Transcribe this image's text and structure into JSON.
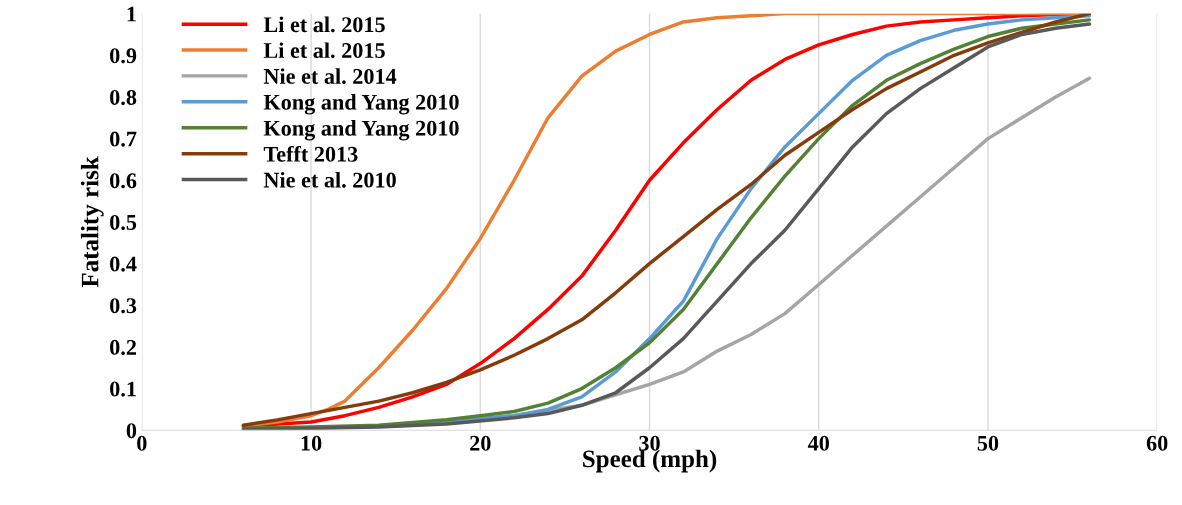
{
  "chart_data": {
    "type": "line",
    "xlabel": "Speed (mph)",
    "ylabel": "Fatality risk",
    "xlim": [
      0,
      60
    ],
    "xticks": [
      0,
      10,
      20,
      30,
      40,
      50,
      60
    ],
    "ylim": [
      0,
      1
    ],
    "yticks": [
      0,
      {
        "value": 0.1,
        "label": "0.1"
      },
      {
        "value": 0.2,
        "label": "0.2"
      },
      {
        "value": 0.3,
        "label": "0.3"
      },
      {
        "value": 0.4,
        "label": "0.4"
      },
      {
        "value": 0.5,
        "label": "0.5"
      },
      {
        "value": 0.6,
        "label": "0.6"
      },
      {
        "value": 0.7,
        "label": "0.7"
      },
      {
        "value": 0.8,
        "label": "0.8"
      },
      {
        "value": 0.9,
        "label": "0.9"
      },
      1
    ],
    "grid": "x",
    "legend": "top left",
    "marker": "none",
    "line_style": "solid",
    "series": [
      {
        "name": "Li et al. 2015",
        "color": "#ff0000",
        "x": [
          6,
          10,
          12,
          14,
          16,
          18,
          20,
          22,
          24,
          26,
          28,
          30,
          32,
          34,
          36,
          38,
          40,
          42,
          44,
          46,
          48,
          50,
          52,
          54,
          56
        ],
        "values": [
          0.01,
          0.02,
          0.035,
          0.055,
          0.08,
          0.11,
          0.16,
          0.22,
          0.29,
          0.37,
          0.48,
          0.6,
          0.69,
          0.77,
          0.84,
          0.89,
          0.925,
          0.95,
          0.97,
          0.98,
          0.985,
          0.99,
          0.995,
          0.998,
          1.0
        ]
      },
      {
        "name": "Li et al. 2015",
        "color": "#ed7d31",
        "x": [
          6,
          8,
          10,
          11,
          12,
          14,
          16,
          18,
          20,
          22,
          24,
          26,
          28,
          30,
          32,
          34,
          36,
          38,
          44,
          50,
          56
        ],
        "values": [
          0.01,
          0.02,
          0.035,
          0.05,
          0.07,
          0.15,
          0.24,
          0.34,
          0.46,
          0.6,
          0.75,
          0.85,
          0.91,
          0.95,
          0.98,
          0.99,
          0.995,
          1.0,
          1.0,
          1.0,
          1.0
        ]
      },
      {
        "name": "Nie et al. 2014",
        "color": "#a5a5a5",
        "x": [
          6,
          10,
          14,
          18,
          22,
          26,
          30,
          32,
          34,
          36,
          38,
          40,
          42,
          44,
          46,
          48,
          50,
          52,
          54,
          56
        ],
        "values": [
          0.002,
          0.005,
          0.01,
          0.02,
          0.035,
          0.06,
          0.11,
          0.14,
          0.19,
          0.23,
          0.28,
          0.35,
          0.42,
          0.49,
          0.56,
          0.63,
          0.7,
          0.75,
          0.8,
          0.845
        ]
      },
      {
        "name": "Kong and Yang 2010",
        "color": "#5b9bd5",
        "x": [
          14,
          18,
          22,
          24,
          26,
          28,
          30,
          32,
          34,
          36,
          38,
          40,
          42,
          44,
          46,
          48,
          50,
          52,
          54,
          56
        ],
        "values": [
          0.01,
          0.02,
          0.035,
          0.05,
          0.08,
          0.14,
          0.22,
          0.31,
          0.46,
          0.58,
          0.68,
          0.76,
          0.84,
          0.9,
          0.935,
          0.96,
          0.975,
          0.985,
          0.99,
          0.995
        ]
      },
      {
        "name": "Kong and Yang 2010",
        "color": "#548235",
        "x": [
          6,
          10,
          14,
          18,
          20,
          22,
          24,
          26,
          28,
          30,
          32,
          34,
          36,
          38,
          40,
          42,
          44,
          46,
          48,
          50,
          52,
          54,
          56
        ],
        "values": [
          0.005,
          0.008,
          0.012,
          0.025,
          0.035,
          0.045,
          0.065,
          0.1,
          0.15,
          0.21,
          0.29,
          0.4,
          0.51,
          0.61,
          0.7,
          0.78,
          0.84,
          0.88,
          0.915,
          0.945,
          0.965,
          0.975,
          0.985
        ]
      },
      {
        "name": "Tefft 2013",
        "color": "#843c0c",
        "x": [
          6,
          8,
          10,
          12,
          14,
          16,
          18,
          20,
          22,
          24,
          26,
          28,
          30,
          32,
          34,
          36,
          38,
          40,
          42,
          44,
          46,
          48,
          50,
          52,
          54,
          56
        ],
        "values": [
          0.012,
          0.025,
          0.04,
          0.055,
          0.07,
          0.09,
          0.115,
          0.145,
          0.18,
          0.22,
          0.265,
          0.33,
          0.4,
          0.465,
          0.53,
          0.59,
          0.66,
          0.715,
          0.77,
          0.82,
          0.86,
          0.9,
          0.93,
          0.955,
          0.98,
          1.0
        ]
      },
      {
        "name": "Nie et al. 2010",
        "color": "#595959",
        "x": [
          6,
          10,
          14,
          18,
          22,
          24,
          26,
          28,
          30,
          32,
          34,
          36,
          38,
          40,
          42,
          44,
          46,
          48,
          50,
          52,
          54,
          56
        ],
        "values": [
          0.002,
          0.005,
          0.008,
          0.015,
          0.03,
          0.04,
          0.06,
          0.09,
          0.15,
          0.22,
          0.31,
          0.4,
          0.48,
          0.58,
          0.68,
          0.76,
          0.82,
          0.87,
          0.92,
          0.95,
          0.965,
          0.975
        ]
      }
    ]
  }
}
